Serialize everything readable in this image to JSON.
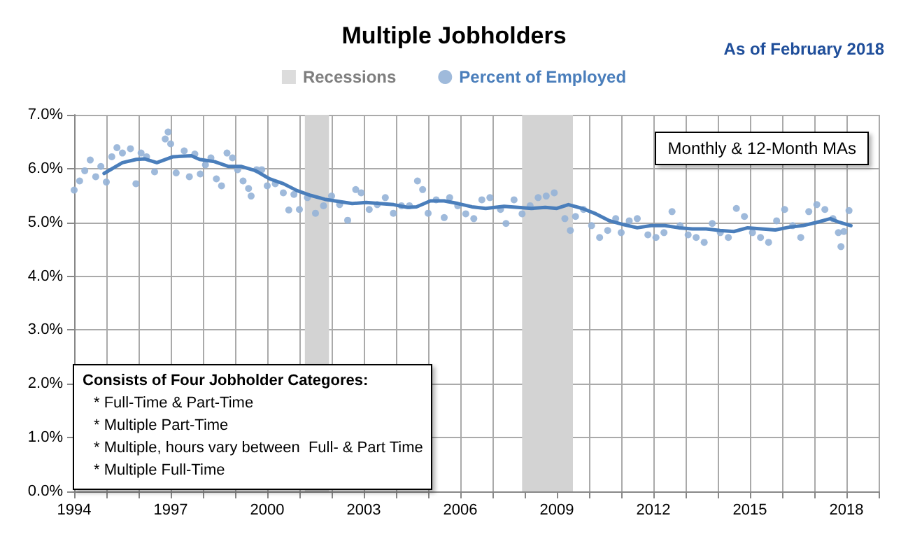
{
  "chart_data": {
    "type": "scatter",
    "title": "Multiple Jobholders",
    "subtitle": "As of February 2018",
    "xlim": [
      1994,
      2019
    ],
    "xticks": [
      {
        "value": 1994,
        "label": "1994"
      },
      {
        "value": 1995,
        "label": null
      },
      {
        "value": 1996,
        "label": null
      },
      {
        "value": 1997,
        "label": "1997"
      },
      {
        "value": 1998,
        "label": null
      },
      {
        "value": 1999,
        "label": null
      },
      {
        "value": 2000,
        "label": "2000"
      },
      {
        "value": 2001,
        "label": null
      },
      {
        "value": 2002,
        "label": null
      },
      {
        "value": 2003,
        "label": "2003"
      },
      {
        "value": 2004,
        "label": null
      },
      {
        "value": 2005,
        "label": null
      },
      {
        "value": 2006,
        "label": "2006"
      },
      {
        "value": 2007,
        "label": null
      },
      {
        "value": 2008,
        "label": null
      },
      {
        "value": 2009,
        "label": "2009"
      },
      {
        "value": 2010,
        "label": null
      },
      {
        "value": 2011,
        "label": null
      },
      {
        "value": 2012,
        "label": "2012"
      },
      {
        "value": 2013,
        "label": null
      },
      {
        "value": 2014,
        "label": null
      },
      {
        "value": 2015,
        "label": "2015"
      },
      {
        "value": 2016,
        "label": null
      },
      {
        "value": 2017,
        "label": null
      },
      {
        "value": 2018,
        "label": "2018"
      },
      {
        "value": 2019,
        "label": null
      }
    ],
    "ylim": [
      0,
      7
    ],
    "yticks": [
      {
        "value": 0,
        "label": "0.0%"
      },
      {
        "value": 1,
        "label": "1.0%"
      },
      {
        "value": 2,
        "label": "2.0%"
      },
      {
        "value": 3,
        "label": "3.0%"
      },
      {
        "value": 4,
        "label": "4.0%"
      },
      {
        "value": 5,
        "label": "5.0%"
      },
      {
        "value": 6,
        "label": "6.0%"
      },
      {
        "value": 7,
        "label": "7.0%"
      }
    ],
    "grid": true,
    "legend": "top",
    "bands": [
      {
        "axis": "x",
        "from": 2001.17,
        "to": 2001.92,
        "label": "Recessions",
        "color": "#d3d3d3"
      },
      {
        "axis": "x",
        "from": 2007.92,
        "to": 2009.5,
        "color": "#d3d3d3"
      }
    ],
    "annotations": [
      "Monthly & 12-Month MAs",
      "Consists of Four Jobholder Categores:",
      "* Full-Time & Part-Time",
      "* Multiple Part-Time",
      "* Multiple, hours vary between  Full- & Part Time",
      "* Multiple Full-Time"
    ],
    "series": [
      {
        "name": "Percent of Employed",
        "color": "#95b3d7",
        "marker": "circle",
        "x": [
          1994.0,
          1994.17,
          1994.33,
          1994.5,
          1994.67,
          1994.83,
          1995.0,
          1995.17,
          1995.33,
          1995.5,
          1995.75,
          1995.92,
          1996.08,
          1996.25,
          1996.5,
          1996.83,
          1996.92,
          1997.0,
          1997.17,
          1997.42,
          1997.58,
          1997.75,
          1997.92,
          1998.08,
          1998.25,
          1998.42,
          1998.58,
          1998.75,
          1998.92,
          1999.08,
          1999.25,
          1999.42,
          1999.5,
          1999.67,
          1999.83,
          2000.0,
          2000.25,
          2000.5,
          2000.67,
          2000.83,
          2001.0,
          2001.25,
          2001.5,
          2001.75,
          2002.0,
          2002.25,
          2002.5,
          2002.75,
          2002.92,
          2003.17,
          2003.42,
          2003.67,
          2003.92,
          2004.17,
          2004.42,
          2004.67,
          2004.83,
          2005.0,
          2005.25,
          2005.5,
          2005.67,
          2005.92,
          2006.17,
          2006.42,
          2006.67,
          2006.92,
          2007.25,
          2007.42,
          2007.67,
          2007.92,
          2008.17,
          2008.42,
          2008.67,
          2008.92,
          2009.25,
          2009.42,
          2009.58,
          2009.83,
          2010.08,
          2010.33,
          2010.58,
          2010.83,
          2011.0,
          2011.25,
          2011.5,
          2011.83,
          2012.08,
          2012.33,
          2012.58,
          2012.83,
          2013.08,
          2013.33,
          2013.58,
          2013.83,
          2014.08,
          2014.33,
          2014.58,
          2014.83,
          2015.08,
          2015.33,
          2015.58,
          2015.83,
          2016.08,
          2016.33,
          2016.58,
          2016.83,
          2017.08,
          2017.33,
          2017.58,
          2017.75,
          2017.83,
          2017.92,
          2018.08
        ],
        "values": [
          5.6,
          5.77,
          5.96,
          6.16,
          5.85,
          6.04,
          5.75,
          6.22,
          6.39,
          6.29,
          6.37,
          5.72,
          6.29,
          6.22,
          5.94,
          6.55,
          6.68,
          6.46,
          5.92,
          6.33,
          5.85,
          6.27,
          5.9,
          6.07,
          6.2,
          5.81,
          5.68,
          6.29,
          6.2,
          5.98,
          5.77,
          5.63,
          5.49,
          5.98,
          5.98,
          5.68,
          5.72,
          5.55,
          5.23,
          5.52,
          5.24,
          5.46,
          5.17,
          5.31,
          5.49,
          5.33,
          5.04,
          5.61,
          5.55,
          5.24,
          5.33,
          5.46,
          5.17,
          5.31,
          5.31,
          5.77,
          5.61,
          5.17,
          5.42,
          5.09,
          5.46,
          5.31,
          5.16,
          5.07,
          5.42,
          5.46,
          5.24,
          4.98,
          5.42,
          5.16,
          5.31,
          5.46,
          5.49,
          5.55,
          5.07,
          4.85,
          5.11,
          5.24,
          4.94,
          4.72,
          4.85,
          5.07,
          4.81,
          5.03,
          5.07,
          4.77,
          4.72,
          4.81,
          5.2,
          4.94,
          4.77,
          4.72,
          4.63,
          4.98,
          4.81,
          4.72,
          5.26,
          5.11,
          4.81,
          4.72,
          4.63,
          5.03,
          5.24,
          4.94,
          4.72,
          5.2,
          5.33,
          5.24,
          5.07,
          4.81,
          4.55,
          4.83,
          5.22
        ]
      },
      {
        "type": "line",
        "color": "#4a7ebb",
        "marker": "none",
        "line_style": "solid",
        "x": [
          1994.93,
          1995.5,
          1995.93,
          1996.2,
          1996.57,
          1997.07,
          1997.64,
          1997.9,
          1998.36,
          1998.8,
          1999.2,
          1999.64,
          2000.07,
          2000.5,
          2000.93,
          2001.36,
          2001.79,
          2002.21,
          2002.64,
          2003.07,
          2003.5,
          2003.93,
          2004.36,
          2004.64,
          2005.07,
          2005.5,
          2005.93,
          2006.36,
          2006.79,
          2007.36,
          2007.79,
          2008.21,
          2008.64,
          2009.0,
          2009.36,
          2009.79,
          2010.21,
          2010.64,
          2011.07,
          2011.5,
          2011.93,
          2012.36,
          2012.79,
          2013.21,
          2013.64,
          2014.07,
          2014.5,
          2014.93,
          2015.36,
          2015.79,
          2016.21,
          2016.64,
          2017.07,
          2017.5,
          2017.79,
          2018.14
        ],
        "values": [
          5.91,
          6.11,
          6.17,
          6.18,
          6.11,
          6.22,
          6.24,
          6.17,
          6.13,
          6.04,
          6.04,
          5.96,
          5.81,
          5.72,
          5.59,
          5.5,
          5.43,
          5.39,
          5.35,
          5.37,
          5.35,
          5.33,
          5.28,
          5.29,
          5.4,
          5.4,
          5.35,
          5.29,
          5.26,
          5.3,
          5.28,
          5.26,
          5.28,
          5.26,
          5.33,
          5.26,
          5.16,
          5.03,
          4.96,
          4.9,
          4.94,
          4.94,
          4.9,
          4.88,
          4.88,
          4.85,
          4.83,
          4.9,
          4.88,
          4.86,
          4.91,
          4.94,
          5.0,
          5.07,
          5.0,
          4.94
        ]
      }
    ]
  }
}
